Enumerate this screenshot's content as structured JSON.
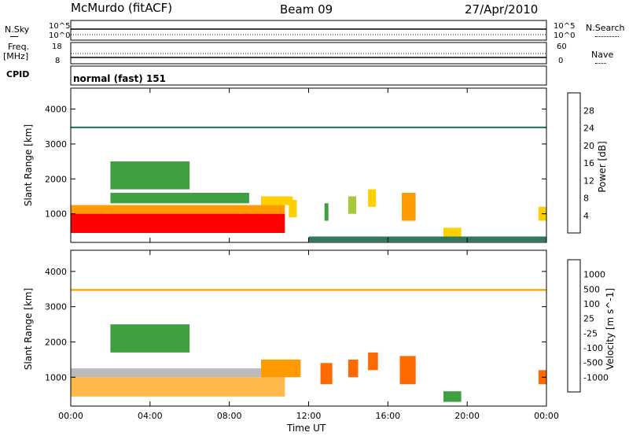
{
  "header": {
    "station": "McMurdo  (fitACF)",
    "beam": "Beam 09",
    "date": "27/Apr/2010"
  },
  "top_panel": {
    "nsky_label": "N.Sky",
    "nsky_ticks": [
      "10^5",
      "10^0"
    ],
    "nsearch_label": "N.Search",
    "freq_label": "Freq.",
    "freq_unit": "[MHz]",
    "freq_ticks": [
      "18",
      "8"
    ],
    "nave_label": "Nave",
    "nave_ticks": [
      "60",
      "0"
    ],
    "cpid_label": "CPID",
    "cpid_value": "normal (fast) 151"
  },
  "colors": {
    "power": [
      "#0000ff",
      "#1f4fa8",
      "#2f7a5a",
      "#3fa040",
      "#a8c83a",
      "#ffd000",
      "#ff9a00",
      "#ff6000",
      "#ff0000"
    ],
    "velocity": [
      "#ff0000",
      "#ff6a00",
      "#ff9a00",
      "#ffb84a",
      "#bbbbbb",
      "#78c440",
      "#3fa040",
      "#2f7a5a",
      "#2c5fa3",
      "#1f3fa8"
    ]
  },
  "chart_data": [
    {
      "type": "heatmap",
      "title": "Power",
      "ylabel": "Slant Range [km]",
      "xlabel": "",
      "x_ticks": [
        "00:00",
        "04:00",
        "08:00",
        "12:00",
        "16:00",
        "20:00",
        "00:00"
      ],
      "x_range_hours": [
        0,
        24
      ],
      "ylim": [
        180,
        4600
      ],
      "y_ticks": [
        1000,
        2000,
        3000,
        4000
      ],
      "colorbar": {
        "label": "Power [dB]",
        "ticks": [
          4,
          8,
          12,
          16,
          20,
          24,
          28
        ],
        "range": [
          0,
          32
        ]
      },
      "regions": [
        {
          "t0": 0.0,
          "t1": 10.8,
          "r0": 450,
          "r1": 1000,
          "level": 30
        },
        {
          "t0": 0.0,
          "t1": 10.8,
          "r0": 1000,
          "r1": 1250,
          "level": 22
        },
        {
          "t0": 9.6,
          "t1": 11.2,
          "r0": 1250,
          "r1": 1500,
          "level": 20
        },
        {
          "t0": 11.0,
          "t1": 11.4,
          "r0": 900,
          "r1": 1400,
          "level": 20
        },
        {
          "t0": 12.8,
          "t1": 13.0,
          "r0": 800,
          "r1": 1300,
          "level": 14
        },
        {
          "t0": 14.0,
          "t1": 14.4,
          "r0": 1000,
          "r1": 1500,
          "level": 16
        },
        {
          "t0": 15.0,
          "t1": 15.4,
          "r0": 1200,
          "r1": 1700,
          "level": 20
        },
        {
          "t0": 16.7,
          "t1": 17.4,
          "r0": 800,
          "r1": 1600,
          "level": 22
        },
        {
          "t0": 18.8,
          "t1": 19.7,
          "r0": 300,
          "r1": 600,
          "level": 20
        },
        {
          "t0": 23.6,
          "t1": 24.0,
          "r0": 800,
          "r1": 1200,
          "level": 18
        },
        {
          "t0": 2.0,
          "t1": 6.0,
          "r0": 1700,
          "r1": 2500,
          "level": 14
        },
        {
          "t0": 2.0,
          "t1": 9.0,
          "r0": 1300,
          "r1": 1600,
          "level": 12
        },
        {
          "t0": 12.0,
          "t1": 24.0,
          "r0": 200,
          "r1": 350,
          "level": 8
        },
        {
          "t0": 0.0,
          "t1": 24.0,
          "r0": 3450,
          "r1": 3500,
          "level": 8
        }
      ]
    },
    {
      "type": "heatmap",
      "title": "Velocity",
      "ylabel": "Slant Range [km]",
      "xlabel": "Time UT",
      "x_ticks": [
        "00:00",
        "04:00",
        "08:00",
        "12:00",
        "16:00",
        "20:00",
        "00:00"
      ],
      "x_range_hours": [
        0,
        24
      ],
      "ylim": [
        180,
        4600
      ],
      "y_ticks": [
        1000,
        2000,
        3000,
        4000
      ],
      "colorbar": {
        "label": "Velocity [m s^-1]",
        "ticks": [
          1000,
          500,
          100,
          25,
          -25,
          -100,
          -500,
          -1000
        ]
      },
      "regions": [
        {
          "t0": 0.0,
          "t1": 10.8,
          "r0": 450,
          "r1": 1000,
          "level": 3
        },
        {
          "t0": 0.0,
          "t1": 10.8,
          "r0": 1000,
          "r1": 1250,
          "level": 4
        },
        {
          "t0": 9.6,
          "t1": 11.6,
          "r0": 1000,
          "r1": 1500,
          "level": 2
        },
        {
          "t0": 12.6,
          "t1": 13.2,
          "r0": 800,
          "r1": 1400,
          "level": 1
        },
        {
          "t0": 14.0,
          "t1": 14.5,
          "r0": 1000,
          "r1": 1500,
          "level": 1
        },
        {
          "t0": 15.0,
          "t1": 15.5,
          "r0": 1200,
          "r1": 1700,
          "level": 1
        },
        {
          "t0": 16.6,
          "t1": 17.4,
          "r0": 800,
          "r1": 1600,
          "level": 1
        },
        {
          "t0": 18.8,
          "t1": 19.7,
          "r0": 300,
          "r1": 600,
          "level": 6
        },
        {
          "t0": 23.6,
          "t1": 24.0,
          "r0": 800,
          "r1": 1200,
          "level": 1
        },
        {
          "t0": 2.0,
          "t1": 6.0,
          "r0": 1700,
          "r1": 2500,
          "level": 6
        },
        {
          "t0": 0.0,
          "t1": 24.0,
          "r0": 3450,
          "r1": 3500,
          "level": 2
        }
      ]
    }
  ]
}
